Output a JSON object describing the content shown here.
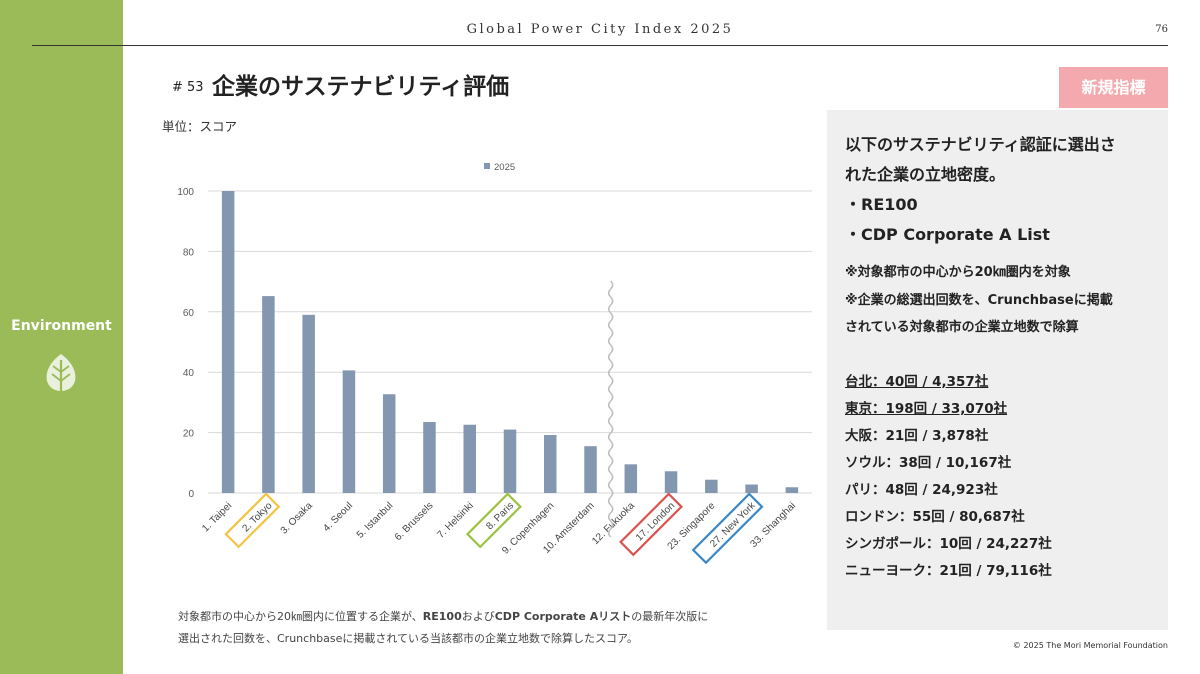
{
  "header": {
    "title": "Global Power City Index 2025",
    "page_number": "76"
  },
  "sidebar": {
    "label": "Environment",
    "icon": "leaf-icon",
    "color": "#9bbb59"
  },
  "section": {
    "number": "# 53",
    "title": "企業のサステナビリティ評価",
    "unit": "単位：スコア"
  },
  "badge": {
    "label": "新規指標",
    "color": "#f4a9ae"
  },
  "panel": {
    "lines": [
      "以下のサステナビリティ認証に選出さ",
      "れた企業の立地密度。",
      "・RE100",
      "・CDP Corporate A List"
    ],
    "notes": [
      "※対象都市の中心から20㎞圏内を対象",
      "※企業の総選出回数を、Crunchbaseに掲載",
      "されている対象都市の企業立地数で除算"
    ],
    "stats": [
      {
        "text": "台北：40回 / 4,357社"
      },
      {
        "text": "東京：198回 / 33,070社"
      },
      {
        "text": "大阪：21回 / 3,878社"
      },
      {
        "text": "ソウル：38回 / 10,167社"
      },
      {
        "text": "パリ：48回 / 24,923社"
      },
      {
        "text": "ロンドン：55回 / 80,687社"
      },
      {
        "text": "シンガポール：10回 / 24,227社"
      },
      {
        "text": "ニューヨーク：21回 / 79,116社"
      }
    ]
  },
  "footnote": {
    "line1_a": "対象都市の中心から20㎞圏内に位置する企業が、",
    "line1_b": "RE100",
    "line1_c": "および",
    "line1_d": "CDP Corporate Aリスト",
    "line1_e": "の最新年次版に",
    "line2": "選出された回数を、Crunchbaseに掲載されている当該都市の企業立地数で除算したスコア。"
  },
  "copyright": "© 2025 The Mori Memorial Foundation",
  "chart_data": {
    "type": "bar",
    "categories": [
      "1. Taipei",
      "2. Tokyo",
      "3. Osaka",
      "4. Seoul",
      "5. Istanbul",
      "6. Brussels",
      "7. Helsinki",
      "8. Paris",
      "9. Copenhagen",
      "10. Amsterdam",
      "12. Fukuoka",
      "17. London",
      "23. Singapore",
      "27. New York",
      "33. Shanghai"
    ],
    "series": [
      {
        "name": "2025",
        "values": [
          100,
          65.2,
          59,
          40.6,
          32.7,
          23.5,
          22.6,
          21,
          19.2,
          15.5,
          9.5,
          7.2,
          4.4,
          2.8,
          1.9
        ],
        "color": "#8497b0"
      }
    ],
    "ylim": [
      0,
      100
    ],
    "yticks": [
      0,
      20,
      40,
      60,
      80,
      100
    ],
    "grid": true,
    "legend_position": "top",
    "axis_break_after": "10. Amsterdam",
    "highlights": [
      {
        "category": "2. Tokyo",
        "color": "#f5c342"
      },
      {
        "category": "8. Paris",
        "color": "#9bc13f"
      },
      {
        "category": "17. London",
        "color": "#d9534f"
      },
      {
        "category": "27. New York",
        "color": "#3a87c8"
      }
    ]
  }
}
